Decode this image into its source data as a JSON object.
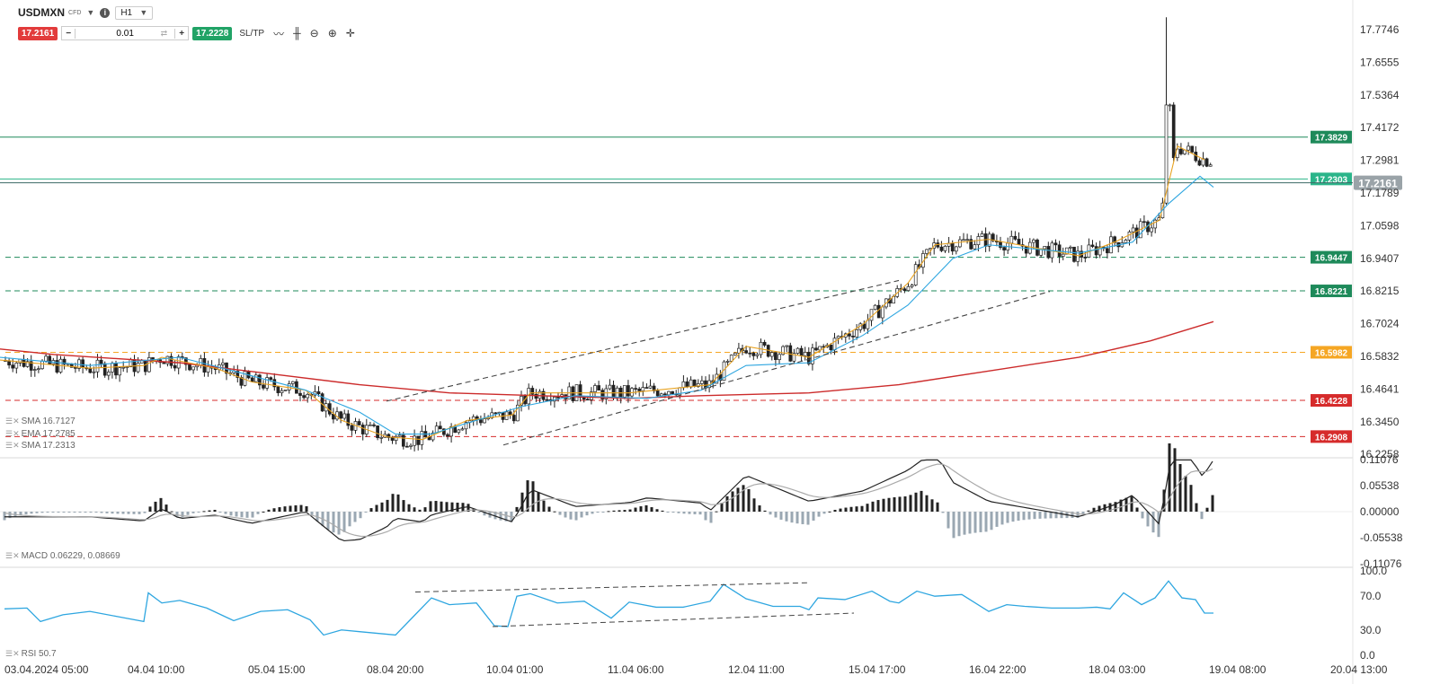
{
  "header": {
    "symbol": "USDMXN",
    "instrument_type": "CFD",
    "timeframe": "H1",
    "sell_price": "17.2161",
    "buy_price": "17.2228",
    "volume": "0.01",
    "sltp_label": "SL/TP",
    "minus_label": "−",
    "plus_label": "+"
  },
  "colors": {
    "bull": "#ffffff",
    "bear": "#222222",
    "sma_long": "#cc2b2b",
    "ema": "#e8a21f",
    "sma_short": "#2ea6e0",
    "level_green": "#1e8a5a",
    "level_orange": "#f5a623",
    "level_red": "#d62b2b",
    "macd_line": "#222222",
    "signal_line": "#aaaaaa",
    "hist_pos": "#222222",
    "hist_neg": "#9aa7b2",
    "rsi": "#2ea6e0"
  },
  "chart_data": [
    {
      "type": "candlestick",
      "title": "USDMXN H1",
      "price_axis_ticks": [
        "17.7746",
        "17.6555",
        "17.5364",
        "17.4172",
        "17.2981",
        "17.1789",
        "17.0598",
        "16.9407",
        "16.8215",
        "16.7024",
        "16.5832",
        "16.4641",
        "16.3450",
        "16.2258"
      ],
      "ylim": [
        16.22,
        17.85
      ],
      "time_labels": [
        "03.04.2024 05:00",
        "04.04 10:00",
        "05.04 15:00",
        "08.04 20:00",
        "10.04 01:00",
        "11.04 06:00",
        "12.04 11:00",
        "15.04 17:00",
        "16.04 22:00",
        "18.04 03:00",
        "19.04 08:00",
        "20.04 13:00"
      ],
      "current_price": "17.2161",
      "levels": [
        {
          "value": "17.3829",
          "style": "solid",
          "color": "#1e8a5a"
        },
        {
          "value": "17.2303",
          "style": "solid",
          "color": "#2bb58a"
        },
        {
          "value": "16.9447",
          "style": "dashed",
          "color": "#1e8a5a"
        },
        {
          "value": "16.8221",
          "style": "dashed",
          "color": "#1e8a5a"
        },
        {
          "value": "16.5982",
          "style": "dashed",
          "color": "#f5a623"
        },
        {
          "value": "16.4228",
          "style": "dashed",
          "color": "#d62b2b"
        },
        {
          "value": "16.2908",
          "style": "dashed",
          "color": "#d62b2b"
        }
      ],
      "indicators": [
        {
          "name": "SMA",
          "value": "16.7127"
        },
        {
          "name": "EMA",
          "value": "17.2785"
        },
        {
          "name": "SMA",
          "value": "17.2313"
        }
      ],
      "series": [
        {
          "name": "SMA 16.7127",
          "values": [
            [
              0,
              16.61
            ],
            [
              60,
              16.59
            ],
            [
              200,
              16.56
            ],
            [
              300,
              16.52
            ],
            [
              400,
              16.48
            ],
            [
              500,
              16.45
            ],
            [
              600,
              16.44
            ],
            [
              700,
              16.43
            ],
            [
              780,
              16.44
            ],
            [
              900,
              16.45
            ],
            [
              1000,
              16.48
            ],
            [
              1100,
              16.53
            ],
            [
              1200,
              16.58
            ],
            [
              1280,
              16.64
            ],
            [
              1350,
              16.71
            ]
          ]
        },
        {
          "name": "EMA 17.2785",
          "values": [
            [
              0,
              16.57
            ],
            [
              100,
              16.54
            ],
            [
              160,
              16.55
            ],
            [
              180,
              16.58
            ],
            [
              240,
              16.54
            ],
            [
              280,
              16.49
            ],
            [
              340,
              16.46
            ],
            [
              380,
              16.35
            ],
            [
              430,
              16.29
            ],
            [
              470,
              16.28
            ],
            [
              520,
              16.35
            ],
            [
              570,
              16.37
            ],
            [
              590,
              16.45
            ],
            [
              700,
              16.45
            ],
            [
              790,
              16.48
            ],
            [
              830,
              16.62
            ],
            [
              900,
              16.58
            ],
            [
              960,
              16.7
            ],
            [
              1010,
              16.85
            ],
            [
              1040,
              16.99
            ],
            [
              1100,
              17.01
            ],
            [
              1200,
              16.95
            ],
            [
              1240,
              17.0
            ],
            [
              1290,
              17.08
            ],
            [
              1310,
              17.35
            ],
            [
              1340,
              17.3
            ]
          ]
        },
        {
          "name": "SMA 17.2313",
          "values": [
            [
              0,
              16.58
            ],
            [
              100,
              16.55
            ],
            [
              200,
              16.58
            ],
            [
              260,
              16.53
            ],
            [
              340,
              16.46
            ],
            [
              400,
              16.38
            ],
            [
              440,
              16.3
            ],
            [
              480,
              16.3
            ],
            [
              540,
              16.36
            ],
            [
              580,
              16.4
            ],
            [
              640,
              16.44
            ],
            [
              720,
              16.43
            ],
            [
              780,
              16.46
            ],
            [
              830,
              16.55
            ],
            [
              900,
              16.56
            ],
            [
              960,
              16.66
            ],
            [
              1010,
              16.77
            ],
            [
              1060,
              16.94
            ],
            [
              1100,
              16.99
            ],
            [
              1200,
              16.96
            ],
            [
              1260,
              17.0
            ],
            [
              1300,
              17.14
            ],
            [
              1335,
              17.24
            ],
            [
              1350,
              17.2
            ]
          ]
        },
        {
          "name": "Trendline upper",
          "values": [
            [
              430,
              16.42
            ],
            [
              1000,
              16.86
            ]
          ]
        },
        {
          "name": "Trendline lower",
          "values": [
            [
              560,
              16.26
            ],
            [
              1168,
              16.82
            ]
          ]
        }
      ]
    },
    {
      "type": "line",
      "title": "MACD",
      "label": "MACD 0.06229, 0.08669",
      "y_ticks": [
        "0.11076",
        "0.05538",
        "0.00000",
        "-0.05538",
        "-0.11076"
      ],
      "ylim": [
        -0.11076,
        0.11076
      ]
    },
    {
      "type": "line",
      "title": "RSI",
      "label": "RSI 50.7",
      "y_ticks": [
        "100.0",
        "70.0",
        "30.0",
        "0.0"
      ],
      "ylim": [
        0,
        100
      ],
      "series": [
        {
          "name": "RSI",
          "values": [
            [
              5,
              55
            ],
            [
              30,
              56
            ],
            [
              45,
              40
            ],
            [
              70,
              48
            ],
            [
              100,
              52
            ],
            [
              130,
              46
            ],
            [
              160,
              40
            ],
            [
              165,
              74
            ],
            [
              180,
              62
            ],
            [
              200,
              65
            ],
            [
              230,
              56
            ],
            [
              260,
              41
            ],
            [
              290,
              52
            ],
            [
              320,
              54
            ],
            [
              345,
              42
            ],
            [
              360,
              24
            ],
            [
              380,
              30
            ],
            [
              400,
              28
            ],
            [
              420,
              26
            ],
            [
              440,
              24
            ],
            [
              460,
              46
            ],
            [
              480,
              68
            ],
            [
              500,
              60
            ],
            [
              530,
              62
            ],
            [
              550,
              35
            ],
            [
              565,
              34
            ],
            [
              575,
              70
            ],
            [
              590,
              73
            ],
            [
              620,
              62
            ],
            [
              650,
              64
            ],
            [
              680,
              44
            ],
            [
              700,
              63
            ],
            [
              730,
              57
            ],
            [
              760,
              57
            ],
            [
              790,
              64
            ],
            [
              805,
              84
            ],
            [
              830,
              67
            ],
            [
              860,
              58
            ],
            [
              890,
              58
            ],
            [
              900,
              54
            ],
            [
              910,
              68
            ],
            [
              940,
              66
            ],
            [
              970,
              76
            ],
            [
              990,
              64
            ],
            [
              1000,
              62
            ],
            [
              1020,
              76
            ],
            [
              1040,
              70
            ],
            [
              1070,
              72
            ],
            [
              1100,
              52
            ],
            [
              1120,
              60
            ],
            [
              1140,
              58
            ],
            [
              1170,
              56
            ],
            [
              1200,
              56
            ],
            [
              1220,
              57
            ],
            [
              1235,
              55
            ],
            [
              1250,
              74
            ],
            [
              1270,
              60
            ],
            [
              1285,
              68
            ],
            [
              1300,
              88
            ],
            [
              1315,
              68
            ],
            [
              1330,
              66
            ],
            [
              1340,
              50
            ],
            [
              1350,
              50
            ]
          ]
        },
        {
          "name": "RSI trendline upper",
          "values": [
            [
              462,
              75
            ],
            [
              900,
              86
            ]
          ]
        },
        {
          "name": "RSI trendline lower",
          "values": [
            [
              548,
              34
            ],
            [
              950,
              50
            ]
          ]
        }
      ]
    }
  ]
}
